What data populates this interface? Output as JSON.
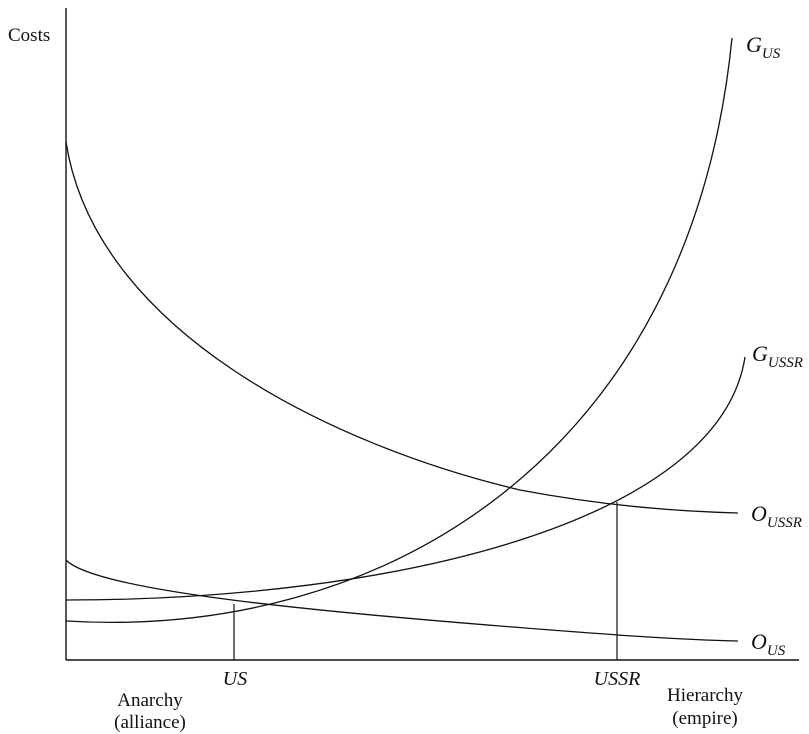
{
  "y_axis_label": "Costs",
  "curves": {
    "g_us": {
      "main": "G",
      "sub": "US"
    },
    "g_ussr": {
      "main": "G",
      "sub": "USSR"
    },
    "o_ussr": {
      "main": "O",
      "sub": "USSR"
    },
    "o_us": {
      "main": "O",
      "sub": "US"
    }
  },
  "equilibria": {
    "us": "US",
    "ussr": "USSR"
  },
  "x_axis_ends": {
    "left_line1": "Anarchy",
    "left_line2": "(alliance)",
    "right_line1": "Hierarchy",
    "right_line2": "(empire)"
  }
}
